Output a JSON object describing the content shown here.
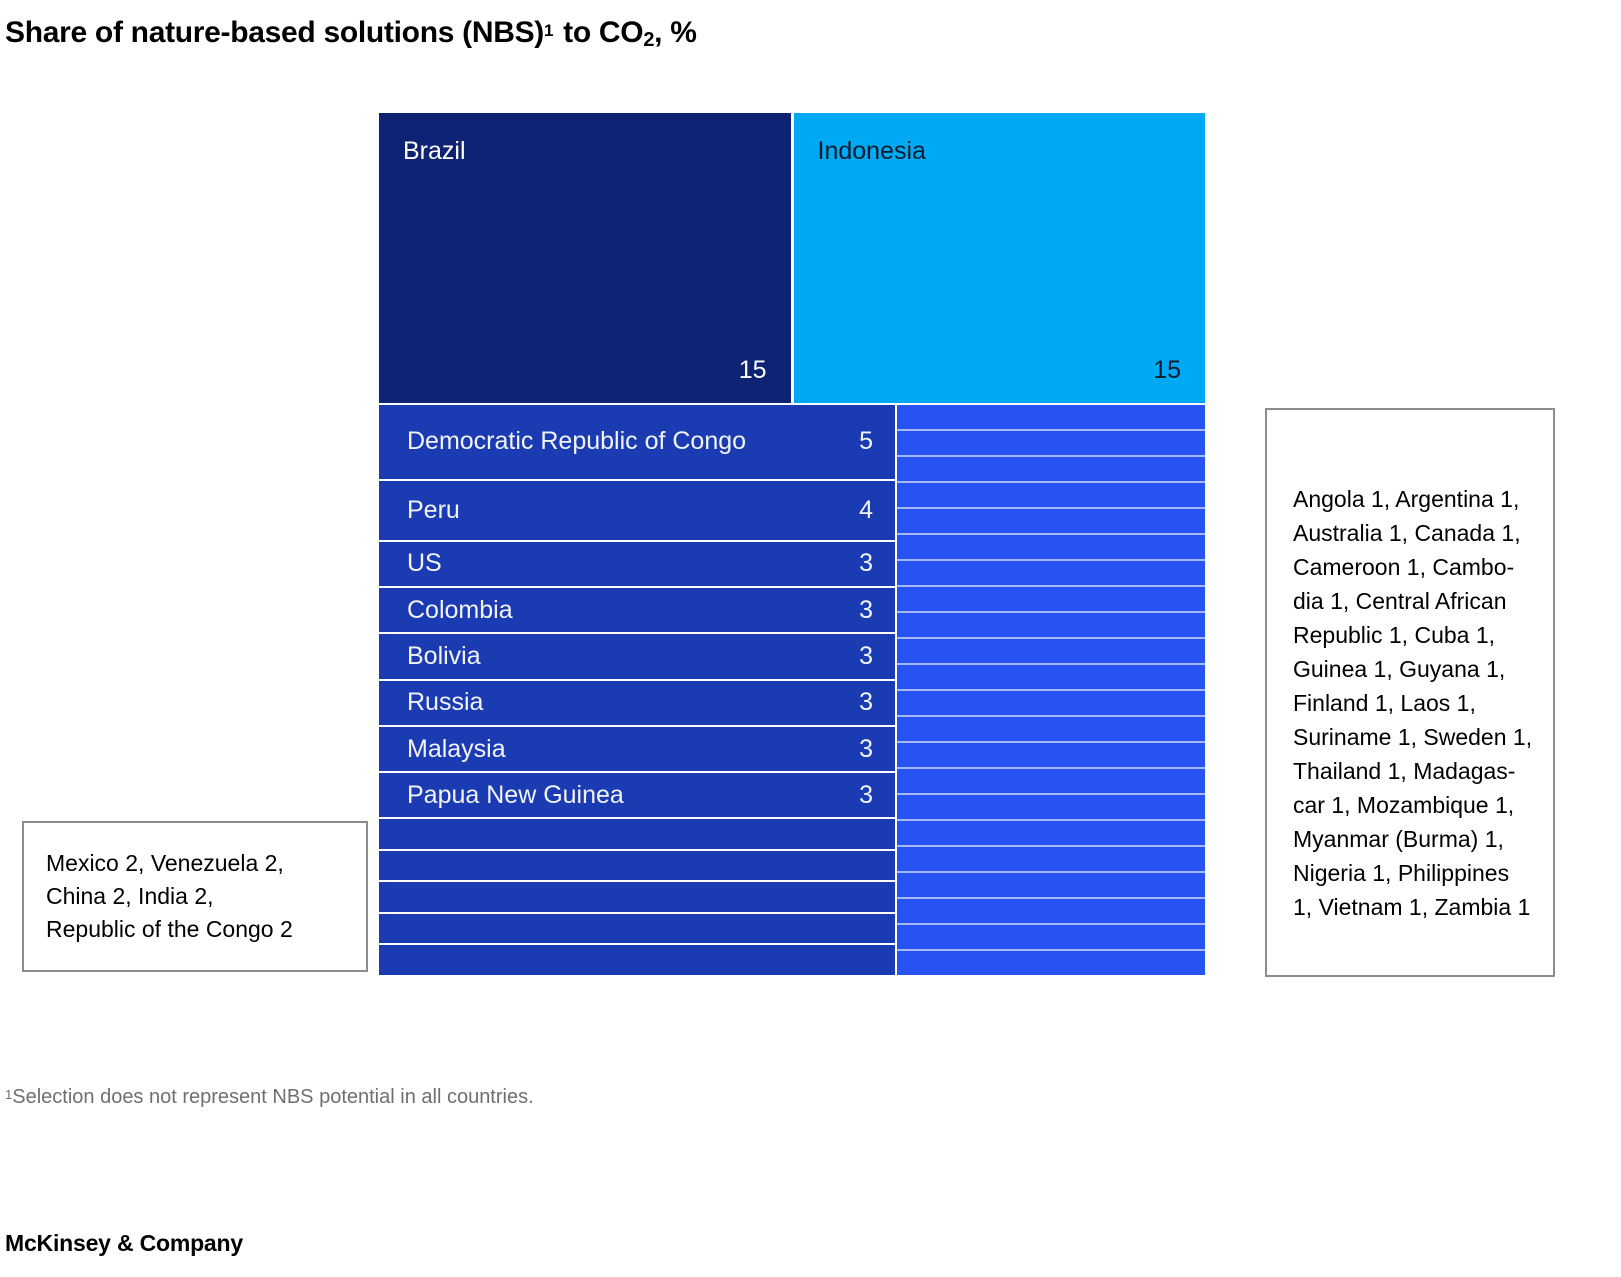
{
  "title": {
    "main": "Share of nature-based solutions (NBS)",
    "footnote_marker": "1",
    "mid": " to CO",
    "subscript": "2",
    "suffix": ", %"
  },
  "colors": {
    "navy": "#0e2374",
    "cyan": "#00a9f4",
    "mid_blue": "#1b3bb2",
    "stripe_blue": "#2653f2",
    "stripe_divider": "#a6b7f3",
    "border_gray": "#8c8c8c",
    "footnote_gray": "#6f6f6f",
    "indonesia_text": "#051c2c",
    "white_text": "#f2f4fa"
  },
  "treemap": {
    "top_blocks": [
      {
        "name": "Brazil",
        "value": "15",
        "color": "#0e2374",
        "text_color": "#ffffff"
      },
      {
        "name": "Indonesia",
        "value": "15",
        "color": "#00a9f4",
        "text_color": "#051c2c"
      }
    ],
    "mid_rows": [
      {
        "name": "Democratic Republic of Congo",
        "value": 5,
        "labeled": true
      },
      {
        "name": "Peru",
        "value": 4,
        "labeled": true
      },
      {
        "name": "US",
        "value": 3,
        "labeled": true
      },
      {
        "name": "Colombia",
        "value": 3,
        "labeled": true
      },
      {
        "name": "Bolivia",
        "value": 3,
        "labeled": true
      },
      {
        "name": "Russia",
        "value": 3,
        "labeled": true
      },
      {
        "name": "Malaysia",
        "value": 3,
        "labeled": true
      },
      {
        "name": "Papua New Guinea",
        "value": 3,
        "labeled": true
      },
      {
        "name": "Mexico",
        "value": 2,
        "labeled": false
      },
      {
        "name": "Venezuela",
        "value": 2,
        "labeled": false
      },
      {
        "name": "China",
        "value": 2,
        "labeled": false
      },
      {
        "name": "India",
        "value": 2,
        "labeled": false
      },
      {
        "name": "Republic of the Congo",
        "value": 2,
        "labeled": false
      }
    ],
    "stripe_countries": [
      "Angola",
      "Argentina",
      "Australia",
      "Canada",
      "Cameroon",
      "Cambodia",
      "Central African Republic",
      "Cuba",
      "Guinea",
      "Guyana",
      "Finland",
      "Laos",
      "Suriname",
      "Sweden",
      "Thailand",
      "Madagascar",
      "Mozambique",
      "Myanmar (Burma)",
      "Nigeria",
      "Philippines",
      "Vietnam",
      "Zambia"
    ]
  },
  "left_note": {
    "display_text": "Mexico 2, Venezuela 2,\nChina 2, India 2,\nRepublic of the Congo 2"
  },
  "right_note": {
    "display_text": "Angola 1, Argentina 1,\nAustralia 1, Canada 1,\nCameroon 1, Cambo-\ndia 1, Central African\nRepublic 1, Cuba 1,\nGuinea 1, Guyana 1,\nFinland 1, Laos 1,\nSuriname 1, Sweden 1,\nThailand 1, Madagas-\ncar 1, Mozambique 1,\nMyanmar (Burma) 1,\nNigeria 1, Philippines\n1, Vietnam 1, Zambia 1"
  },
  "footnote": {
    "marker": "1",
    "text": "Selection does not represent NBS potential in all countries."
  },
  "footer": {
    "text": "McKinsey & Company"
  },
  "chart_data": {
    "type": "treemap",
    "title": "Share of nature-based solutions (NBS) to CO2, %",
    "unit": "%",
    "series": [
      {
        "name": "Brazil",
        "value": 15
      },
      {
        "name": "Indonesia",
        "value": 15
      },
      {
        "name": "Democratic Republic of Congo",
        "value": 5
      },
      {
        "name": "Peru",
        "value": 4
      },
      {
        "name": "US",
        "value": 3
      },
      {
        "name": "Colombia",
        "value": 3
      },
      {
        "name": "Bolivia",
        "value": 3
      },
      {
        "name": "Russia",
        "value": 3
      },
      {
        "name": "Malaysia",
        "value": 3
      },
      {
        "name": "Papua New Guinea",
        "value": 3
      },
      {
        "name": "Mexico",
        "value": 2
      },
      {
        "name": "Venezuela",
        "value": 2
      },
      {
        "name": "China",
        "value": 2
      },
      {
        "name": "India",
        "value": 2
      },
      {
        "name": "Republic of the Congo",
        "value": 2
      },
      {
        "name": "Angola",
        "value": 1
      },
      {
        "name": "Argentina",
        "value": 1
      },
      {
        "name": "Australia",
        "value": 1
      },
      {
        "name": "Canada",
        "value": 1
      },
      {
        "name": "Cameroon",
        "value": 1
      },
      {
        "name": "Cambodia",
        "value": 1
      },
      {
        "name": "Central African Republic",
        "value": 1
      },
      {
        "name": "Cuba",
        "value": 1
      },
      {
        "name": "Guinea",
        "value": 1
      },
      {
        "name": "Guyana",
        "value": 1
      },
      {
        "name": "Finland",
        "value": 1
      },
      {
        "name": "Laos",
        "value": 1
      },
      {
        "name": "Suriname",
        "value": 1
      },
      {
        "name": "Sweden",
        "value": 1
      },
      {
        "name": "Thailand",
        "value": 1
      },
      {
        "name": "Madagascar",
        "value": 1
      },
      {
        "name": "Mozambique",
        "value": 1
      },
      {
        "name": "Myanmar (Burma)",
        "value": 1
      },
      {
        "name": "Nigeria",
        "value": 1
      },
      {
        "name": "Philippines",
        "value": 1
      },
      {
        "name": "Vietnam",
        "value": 1
      },
      {
        "name": "Zambia",
        "value": 1
      }
    ],
    "footnote": "1. Selection does not represent NBS potential in all countries.",
    "source": "McKinsey & Company"
  }
}
